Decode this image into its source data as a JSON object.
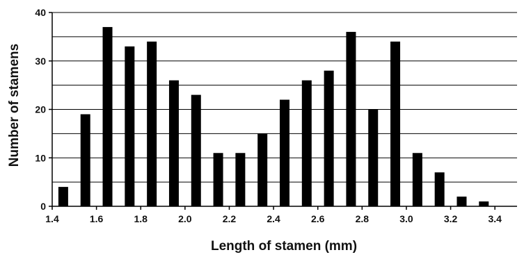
{
  "chart_data": {
    "type": "bar",
    "title": "",
    "xlabel": "Length of stamen (mm)",
    "ylabel": "Number of stamens",
    "x": [
      1.45,
      1.55,
      1.65,
      1.75,
      1.85,
      1.95,
      2.05,
      2.15,
      2.25,
      2.35,
      2.45,
      2.55,
      2.65,
      2.75,
      2.85,
      2.95,
      3.05,
      3.15,
      3.25,
      3.35
    ],
    "values": [
      4,
      19,
      37,
      33,
      34,
      26,
      23,
      11,
      11,
      15,
      22,
      26,
      28,
      36,
      20,
      34,
      11,
      7,
      2,
      1
    ],
    "xlim": [
      1.4,
      3.5
    ],
    "ylim": [
      0,
      40
    ],
    "x_ticks": [
      "1.4",
      "1.6",
      "1.8",
      "2.0",
      "2.2",
      "2.4",
      "2.6",
      "2.8",
      "3.0",
      "3.2",
      "3.4"
    ],
    "x_tick_values": [
      1.4,
      1.6,
      1.8,
      2.0,
      2.2,
      2.4,
      2.6,
      2.8,
      3.0,
      3.2,
      3.4
    ],
    "y_ticks": [
      "0",
      "10",
      "20",
      "30",
      "40"
    ],
    "y_tick_values": [
      0,
      10,
      20,
      30,
      40
    ],
    "gridlines": [
      5,
      10,
      15,
      20,
      25,
      30,
      35,
      40
    ],
    "grid": true,
    "bar_color": "#000000",
    "grid_color": "#000000"
  }
}
